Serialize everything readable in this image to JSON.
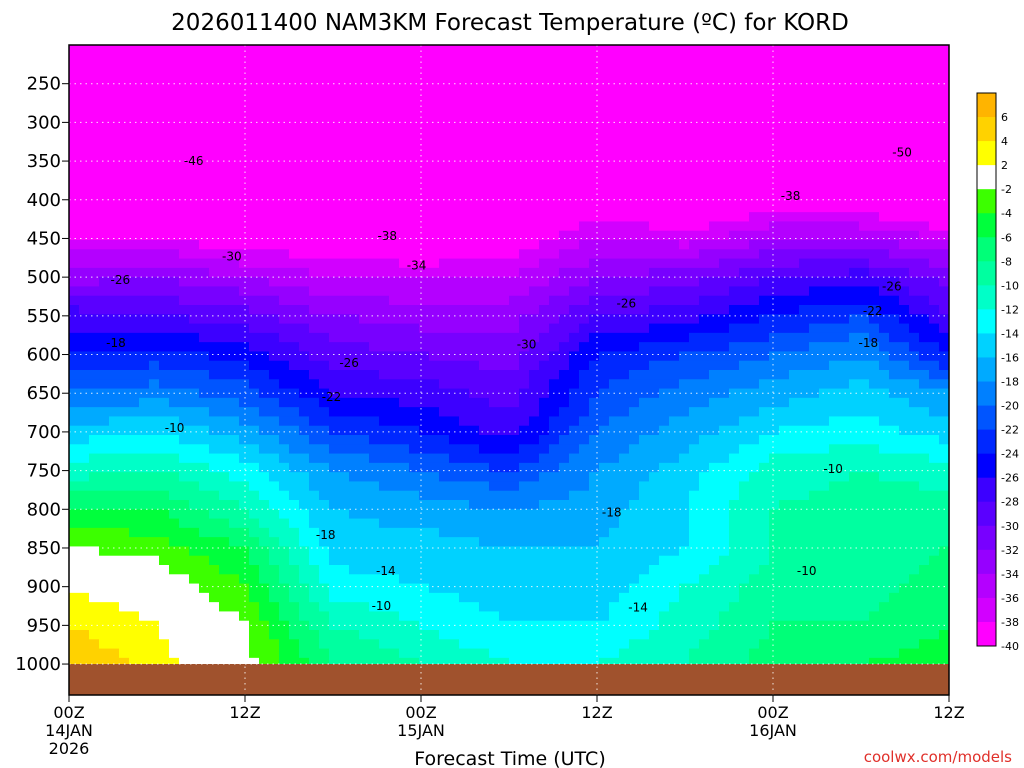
{
  "chart_data": {
    "type": "heatmap",
    "title": "2026011400 NAM3KM Forecast Temperature (ºC) for KORD",
    "xlabel": "Forecast Time (UTC)",
    "ylabel": "",
    "x_ticks": [
      {
        "time_h": 0,
        "label": "00Z",
        "sub": "14JAN",
        "sub2": "2026"
      },
      {
        "time_h": 12,
        "label": "12Z",
        "sub": "",
        "sub2": ""
      },
      {
        "time_h": 24,
        "label": "00Z",
        "sub": "15JAN",
        "sub2": ""
      },
      {
        "time_h": 36,
        "label": "12Z",
        "sub": "",
        "sub2": ""
      },
      {
        "time_h": 48,
        "label": "00Z",
        "sub": "16JAN",
        "sub2": ""
      },
      {
        "time_h": 60,
        "label": "12Z",
        "sub": "",
        "sub2": ""
      }
    ],
    "xlim": [
      0,
      60
    ],
    "y_ticks": [
      "250",
      "300",
      "350",
      "400",
      "450",
      "500",
      "550",
      "600",
      "650",
      "700",
      "750",
      "800",
      "850",
      "900",
      "950",
      "1000"
    ],
    "ylim": [
      200,
      1040
    ],
    "colorbar": {
      "labels": [
        "6",
        "4",
        "2",
        "-2",
        "-4",
        "-6",
        "-8",
        "-10",
        "-12",
        "-14",
        "-16",
        "-18",
        "-20",
        "-22",
        "-24",
        "-26",
        "-28",
        "-30",
        "-32",
        "-34",
        "-36",
        "-38",
        "-40"
      ],
      "colors": [
        "#ffb400",
        "#ffd200",
        "#ffff00",
        "#ffffff",
        "#3cff00",
        "#00ff3c",
        "#00ff78",
        "#00ffa0",
        "#00ffc8",
        "#00ffff",
        "#00d2ff",
        "#00aaff",
        "#0080ff",
        "#0055ff",
        "#0028ff",
        "#0000ff",
        "#3c00ff",
        "#5a00ff",
        "#7800ff",
        "#9600ff",
        "#b400ff",
        "#d200ff",
        "#ff00ff"
      ]
    },
    "series": [
      {
        "time_h": 0,
        "temps": [
          -55,
          -52,
          -48,
          -44,
          -38,
          -33,
          -27,
          -24,
          -20,
          -15,
          -11,
          -6,
          -2,
          2,
          4,
          6
        ]
      },
      {
        "time_h": 6,
        "temps": [
          -54,
          -52,
          -48,
          -44,
          -38,
          -32,
          -28,
          -23,
          -19,
          -14,
          -10,
          -6,
          -3,
          0,
          2,
          3
        ]
      },
      {
        "time_h": 12,
        "temps": [
          -55,
          -52,
          -48,
          -44,
          -40,
          -34,
          -29,
          -25,
          -21,
          -17,
          -13,
          -10,
          -6,
          -4,
          -2,
          -1
        ]
      },
      {
        "time_h": 18,
        "temps": [
          -54,
          -52,
          -48,
          -44,
          -40,
          -36,
          -32,
          -29,
          -26,
          -22,
          -18,
          -16,
          -15,
          -13,
          -10,
          -8
        ]
      },
      {
        "time_h": 24,
        "temps": [
          -55,
          -52,
          -48,
          -45,
          -42,
          -36,
          -33,
          -30,
          -27,
          -24,
          -20,
          -17,
          -15,
          -14,
          -12,
          -10
        ]
      },
      {
        "time_h": 30,
        "temps": [
          -54,
          -52,
          -48,
          -44,
          -40,
          -36,
          -33,
          -31,
          -29,
          -27,
          -22,
          -18,
          -16,
          -15,
          -14,
          -12
        ]
      },
      {
        "time_h": 36,
        "temps": [
          -55,
          -52,
          -49,
          -40,
          -36,
          -32,
          -28,
          -24,
          -22,
          -20,
          -18,
          -17,
          -16,
          -15,
          -14,
          -12
        ]
      },
      {
        "time_h": 42,
        "temps": [
          -56,
          -52,
          -48,
          -42,
          -37,
          -31,
          -27,
          -22,
          -19,
          -17,
          -15,
          -14,
          -14,
          -12,
          -11,
          -10
        ]
      },
      {
        "time_h": 48,
        "temps": [
          -56,
          -52,
          -48,
          -40,
          -34,
          -28,
          -24,
          -20,
          -17,
          -14,
          -11,
          -10,
          -10,
          -9,
          -8,
          -7
        ]
      },
      {
        "time_h": 54,
        "temps": [
          -56,
          -52,
          -48,
          -40,
          -34,
          -27,
          -22,
          -18,
          -15,
          -13,
          -10,
          -9,
          -9,
          -9,
          -8,
          -6
        ]
      },
      {
        "time_h": 60,
        "temps": [
          -55,
          -52,
          -48,
          -44,
          -36,
          -31,
          -28,
          -24,
          -18,
          -15,
          -11,
          -9,
          -8,
          -7,
          -6,
          -5
        ]
      }
    ],
    "contour_labels": [
      {
        "time_h": 8.5,
        "pres": 350,
        "text": "-46"
      },
      {
        "time_h": 21.7,
        "pres": 447,
        "text": "-38"
      },
      {
        "time_h": 11.1,
        "pres": 473,
        "text": "-30"
      },
      {
        "time_h": 23.7,
        "pres": 485,
        "text": "-34"
      },
      {
        "time_h": 3.5,
        "pres": 504,
        "text": "-26"
      },
      {
        "time_h": 3.2,
        "pres": 585,
        "text": "-18"
      },
      {
        "time_h": 19.1,
        "pres": 611,
        "text": "-26"
      },
      {
        "time_h": 17.9,
        "pres": 655,
        "text": "-22"
      },
      {
        "time_h": 7.2,
        "pres": 695,
        "text": "-10"
      },
      {
        "time_h": 31.2,
        "pres": 587,
        "text": "-30"
      },
      {
        "time_h": 38.0,
        "pres": 534,
        "text": "-26"
      },
      {
        "time_h": 49.2,
        "pres": 395,
        "text": "-38"
      },
      {
        "time_h": 56.1,
        "pres": 512,
        "text": "-26"
      },
      {
        "time_h": 54.8,
        "pres": 544,
        "text": "-22"
      },
      {
        "time_h": 54.5,
        "pres": 585,
        "text": "-18"
      },
      {
        "time_h": 56.8,
        "pres": 339,
        "text": "-50"
      },
      {
        "time_h": 52.1,
        "pres": 748,
        "text": "-10"
      },
      {
        "time_h": 17.5,
        "pres": 833,
        "text": "-18"
      },
      {
        "time_h": 37.0,
        "pres": 804,
        "text": "-18"
      },
      {
        "time_h": 21.6,
        "pres": 880,
        "text": "-14"
      },
      {
        "time_h": 21.3,
        "pres": 925,
        "text": "-10"
      },
      {
        "time_h": 38.8,
        "pres": 927,
        "text": "-14"
      },
      {
        "time_h": 50.3,
        "pres": 880,
        "text": "-10"
      }
    ]
  },
  "footer": {
    "credit": "coolwx.com/models"
  }
}
